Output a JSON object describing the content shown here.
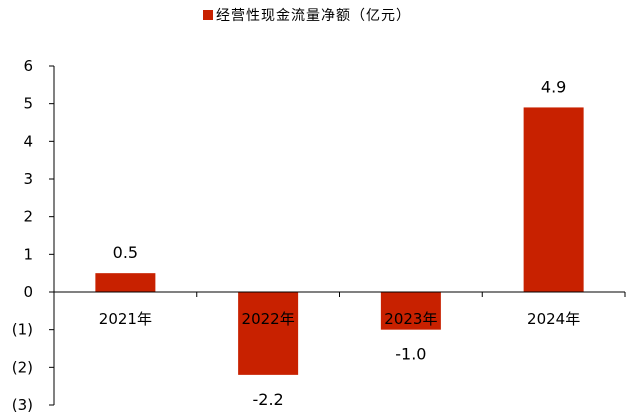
{
  "chart_data": {
    "type": "bar",
    "title": "",
    "xlabel": "",
    "ylabel": "",
    "categories": [
      "2021年",
      "2022年",
      "2023年",
      "2024年"
    ],
    "series": [
      {
        "name": "经营性现金流量净额（亿元）",
        "values": [
          0.5,
          -2.2,
          -1.0,
          4.9
        ],
        "color": "#c82100"
      }
    ],
    "data_labels": [
      "0.5",
      "-2.2",
      "-1.0",
      "4.9"
    ],
    "ylim": [
      -3,
      6
    ],
    "yticks": [
      6,
      5,
      4,
      3,
      2,
      1,
      0,
      -1,
      -2,
      -3
    ],
    "ytick_labels": [
      "6",
      "5",
      "4",
      "3",
      "2",
      "1",
      "0",
      "(1)",
      "(2)",
      "(3)"
    ],
    "grid": false,
    "legend_position": "top-center"
  }
}
